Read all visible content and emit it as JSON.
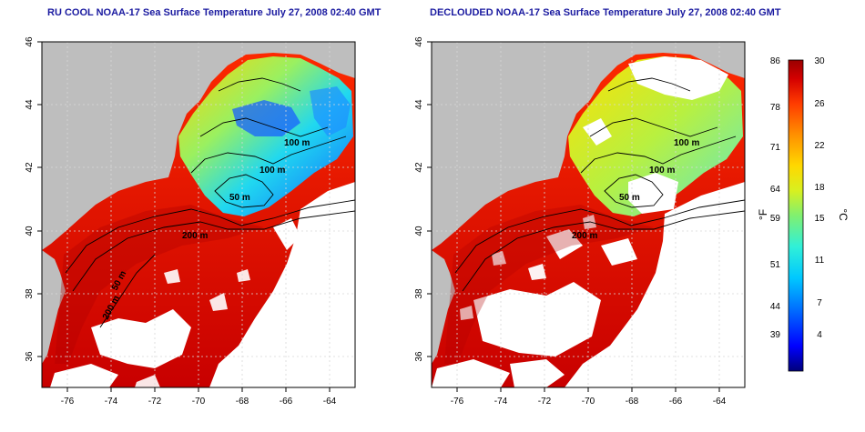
{
  "panels": [
    {
      "id": "left",
      "title": "RU COOL NOAA-17 Sea Surface Temperature July 27, 2008 02:40 GMT",
      "clouds": "masked"
    },
    {
      "id": "right",
      "title": "DECLOUDED NOAA-17 Sea Surface Temperature July 27, 2008 02:40 GMT",
      "clouds": "removed"
    }
  ],
  "axes": {
    "lon_ticks": [
      "-76",
      "-74",
      "-72",
      "-70",
      "-68",
      "-66",
      "-64"
    ],
    "lat_ticks": [
      "46",
      "44",
      "42",
      "40",
      "38",
      "36"
    ],
    "lon_range": [
      -77.1,
      -62.9
    ],
    "lat_range": [
      35.0,
      46.0
    ]
  },
  "isobaths": [
    "100 m",
    "100 m",
    "50 m",
    "200 m",
    "200 m",
    "50 m"
  ],
  "colorbar": {
    "unit_f": "°F",
    "unit_c": "°C",
    "fahrenheit_ticks": [
      "86",
      "78",
      "71",
      "64",
      "59",
      "51",
      "44",
      "39"
    ],
    "celsius_ticks": [
      "30",
      "26",
      "22",
      "18",
      "15",
      "11",
      "7",
      "4"
    ],
    "range_c": [
      0,
      30
    ],
    "colors": [
      "#00007a",
      "#0000ff",
      "#0070ff",
      "#00c8ff",
      "#30f0d8",
      "#80f070",
      "#d8f020",
      "#ffd800",
      "#ff9000",
      "#ff3c00",
      "#d40000",
      "#9a0000"
    ]
  },
  "map_colors": {
    "land": "#bebebe",
    "cloud": "#ffffff",
    "bathymetry_line": "#000000"
  }
}
